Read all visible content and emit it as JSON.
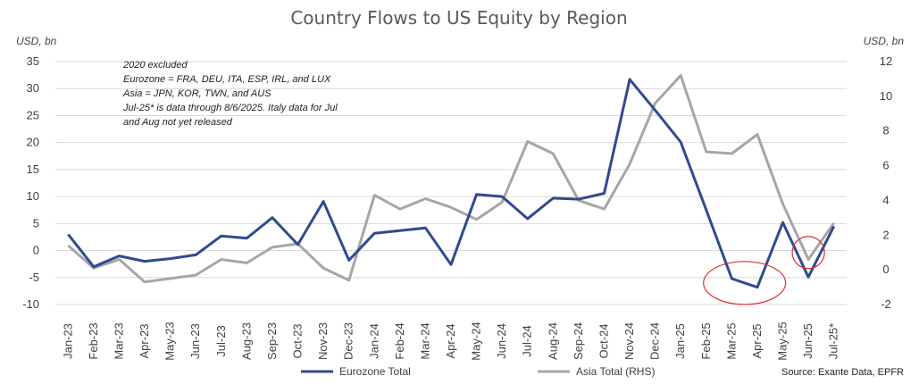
{
  "chart_data": {
    "type": "line",
    "title": "Country Flows to US Equity by Region",
    "y_left_label": "USD, bn",
    "y_right_label": "USD, bn",
    "y_left_lim": [
      -10,
      35
    ],
    "y_left_ticks": [
      "35",
      "30",
      "25",
      "20",
      "15",
      "10",
      "5",
      "0",
      "-5",
      "-10"
    ],
    "y_right_lim": [
      -2,
      12
    ],
    "y_right_ticks": [
      "12",
      "10",
      "8",
      "6",
      "4",
      "2",
      "0",
      "-2"
    ],
    "grid": true,
    "categories": [
      "Jan-23",
      "Feb-23",
      "Mar-23",
      "Apr-23",
      "May-23",
      "Jun-23",
      "Jul-23",
      "Aug-23",
      "Sep-23",
      "Oct-23",
      "Nov-23",
      "Dec-23",
      "Jan-24",
      "Feb-24",
      "Mar-24",
      "Apr-24",
      "May-24",
      "Jun-24",
      "Jul-24",
      "Aug-24",
      "Sep-24",
      "Oct-24",
      "Nov-24",
      "Dec-24",
      "Jan-25",
      "Feb-25",
      "Mar-25",
      "Apr-25",
      "May-25",
      "Jun-25",
      "Jul-25*"
    ],
    "series": [
      {
        "name": "Eurozone Total",
        "axis": "left",
        "color": "#2f4b8f",
        "values": [
          3,
          -3,
          -1,
          -2,
          -1.5,
          -0.8,
          2.7,
          2.3,
          6.1,
          1.1,
          9.1,
          -1.8,
          3.2,
          3.7,
          4.2,
          -2.6,
          10.4,
          10.0,
          5.9,
          9.7,
          9.5,
          10.6,
          31.7,
          26.0,
          20.1,
          7.5,
          -5.2,
          -6.8,
          5.2,
          -4.9,
          4.5
        ]
      },
      {
        "name": "Asia Total (RHS)",
        "axis": "right",
        "color": "#a6a6a6",
        "values": [
          1.4,
          0.1,
          0.6,
          -0.7,
          -0.5,
          -0.3,
          0.6,
          0.4,
          1.3,
          1.5,
          0.1,
          -0.6,
          4.3,
          3.5,
          4.1,
          3.6,
          2.9,
          3.9,
          7.4,
          6.7,
          4.0,
          3.5,
          6.1,
          9.6,
          11.2,
          6.8,
          6.7,
          7.8,
          3.8,
          0.6,
          2.7
        ]
      }
    ],
    "annotation_lines": [
      "2020 excluded",
      "Eurozone = FRA, DEU, ITA, ESP, IRL, and LUX",
      "Asia = JPN, KOR, TWN, and AUS",
      "Jul-25* is data through 8/6/2025. Italy data for Jul",
      "and Aug not yet released"
    ],
    "highlight_circles": [
      {
        "from": "Mar-25",
        "to": "Apr-25",
        "axis": "left",
        "center_value": -6,
        "color": "#e03030"
      },
      {
        "at": "Jun-25",
        "axis": "right",
        "center_value": 1.0,
        "color": "#e03030"
      }
    ],
    "legend_position": "bottom",
    "source": "Source: Exante Data, EPFR"
  }
}
